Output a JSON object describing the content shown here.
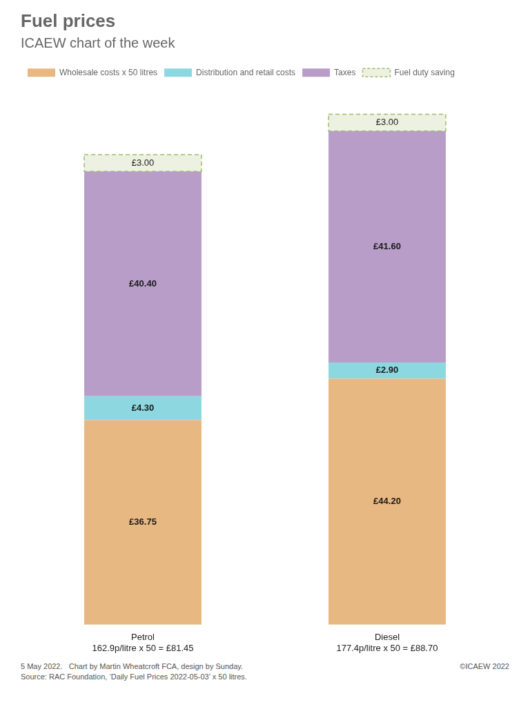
{
  "chart_data": {
    "type": "bar",
    "title": "Fuel prices",
    "subtitle": "ICAEW chart of the week",
    "categories": [
      "Petrol\n162.9p/litre x 50 = £81.45",
      "Diesel\n177.4p/litre x 50 = £88.70"
    ],
    "series": [
      {
        "name": "Wholesale costs x 50 litres",
        "color": "#E8B882",
        "values": [
          36.75,
          44.2
        ],
        "value_labels": [
          "£36.75",
          "£44.20"
        ]
      },
      {
        "name": "Distribution and retail costs",
        "color": "#8DD8E0",
        "values": [
          4.3,
          2.9
        ],
        "value_labels": [
          "£4.30",
          "£2.90"
        ]
      },
      {
        "name": "Taxes",
        "color": "#B89DC8",
        "values": [
          40.4,
          41.6
        ],
        "value_labels": [
          "£40.40",
          "£41.60"
        ]
      },
      {
        "name": "Fuel duty saving",
        "color": "#A0BB6A",
        "line_style": "dashed",
        "values": [
          3,
          3
        ],
        "value_labels": [
          "£3.00",
          "£3.00"
        ]
      }
    ],
    "stacked": true,
    "data_labels": true,
    "grid": false,
    "legend": "top",
    "tick_labels": "x",
    "ylim": [
      0,
      97.2
    ],
    "annotations": [
      "5 May 2022.   Chart by Martin Wheatcroft FCA, design by Sunday.\nSource: RAC Foundation, ‘Daily Fuel Prices 2022-05-03’ x 50 litres.",
      "©ICAEW 2022"
    ]
  }
}
